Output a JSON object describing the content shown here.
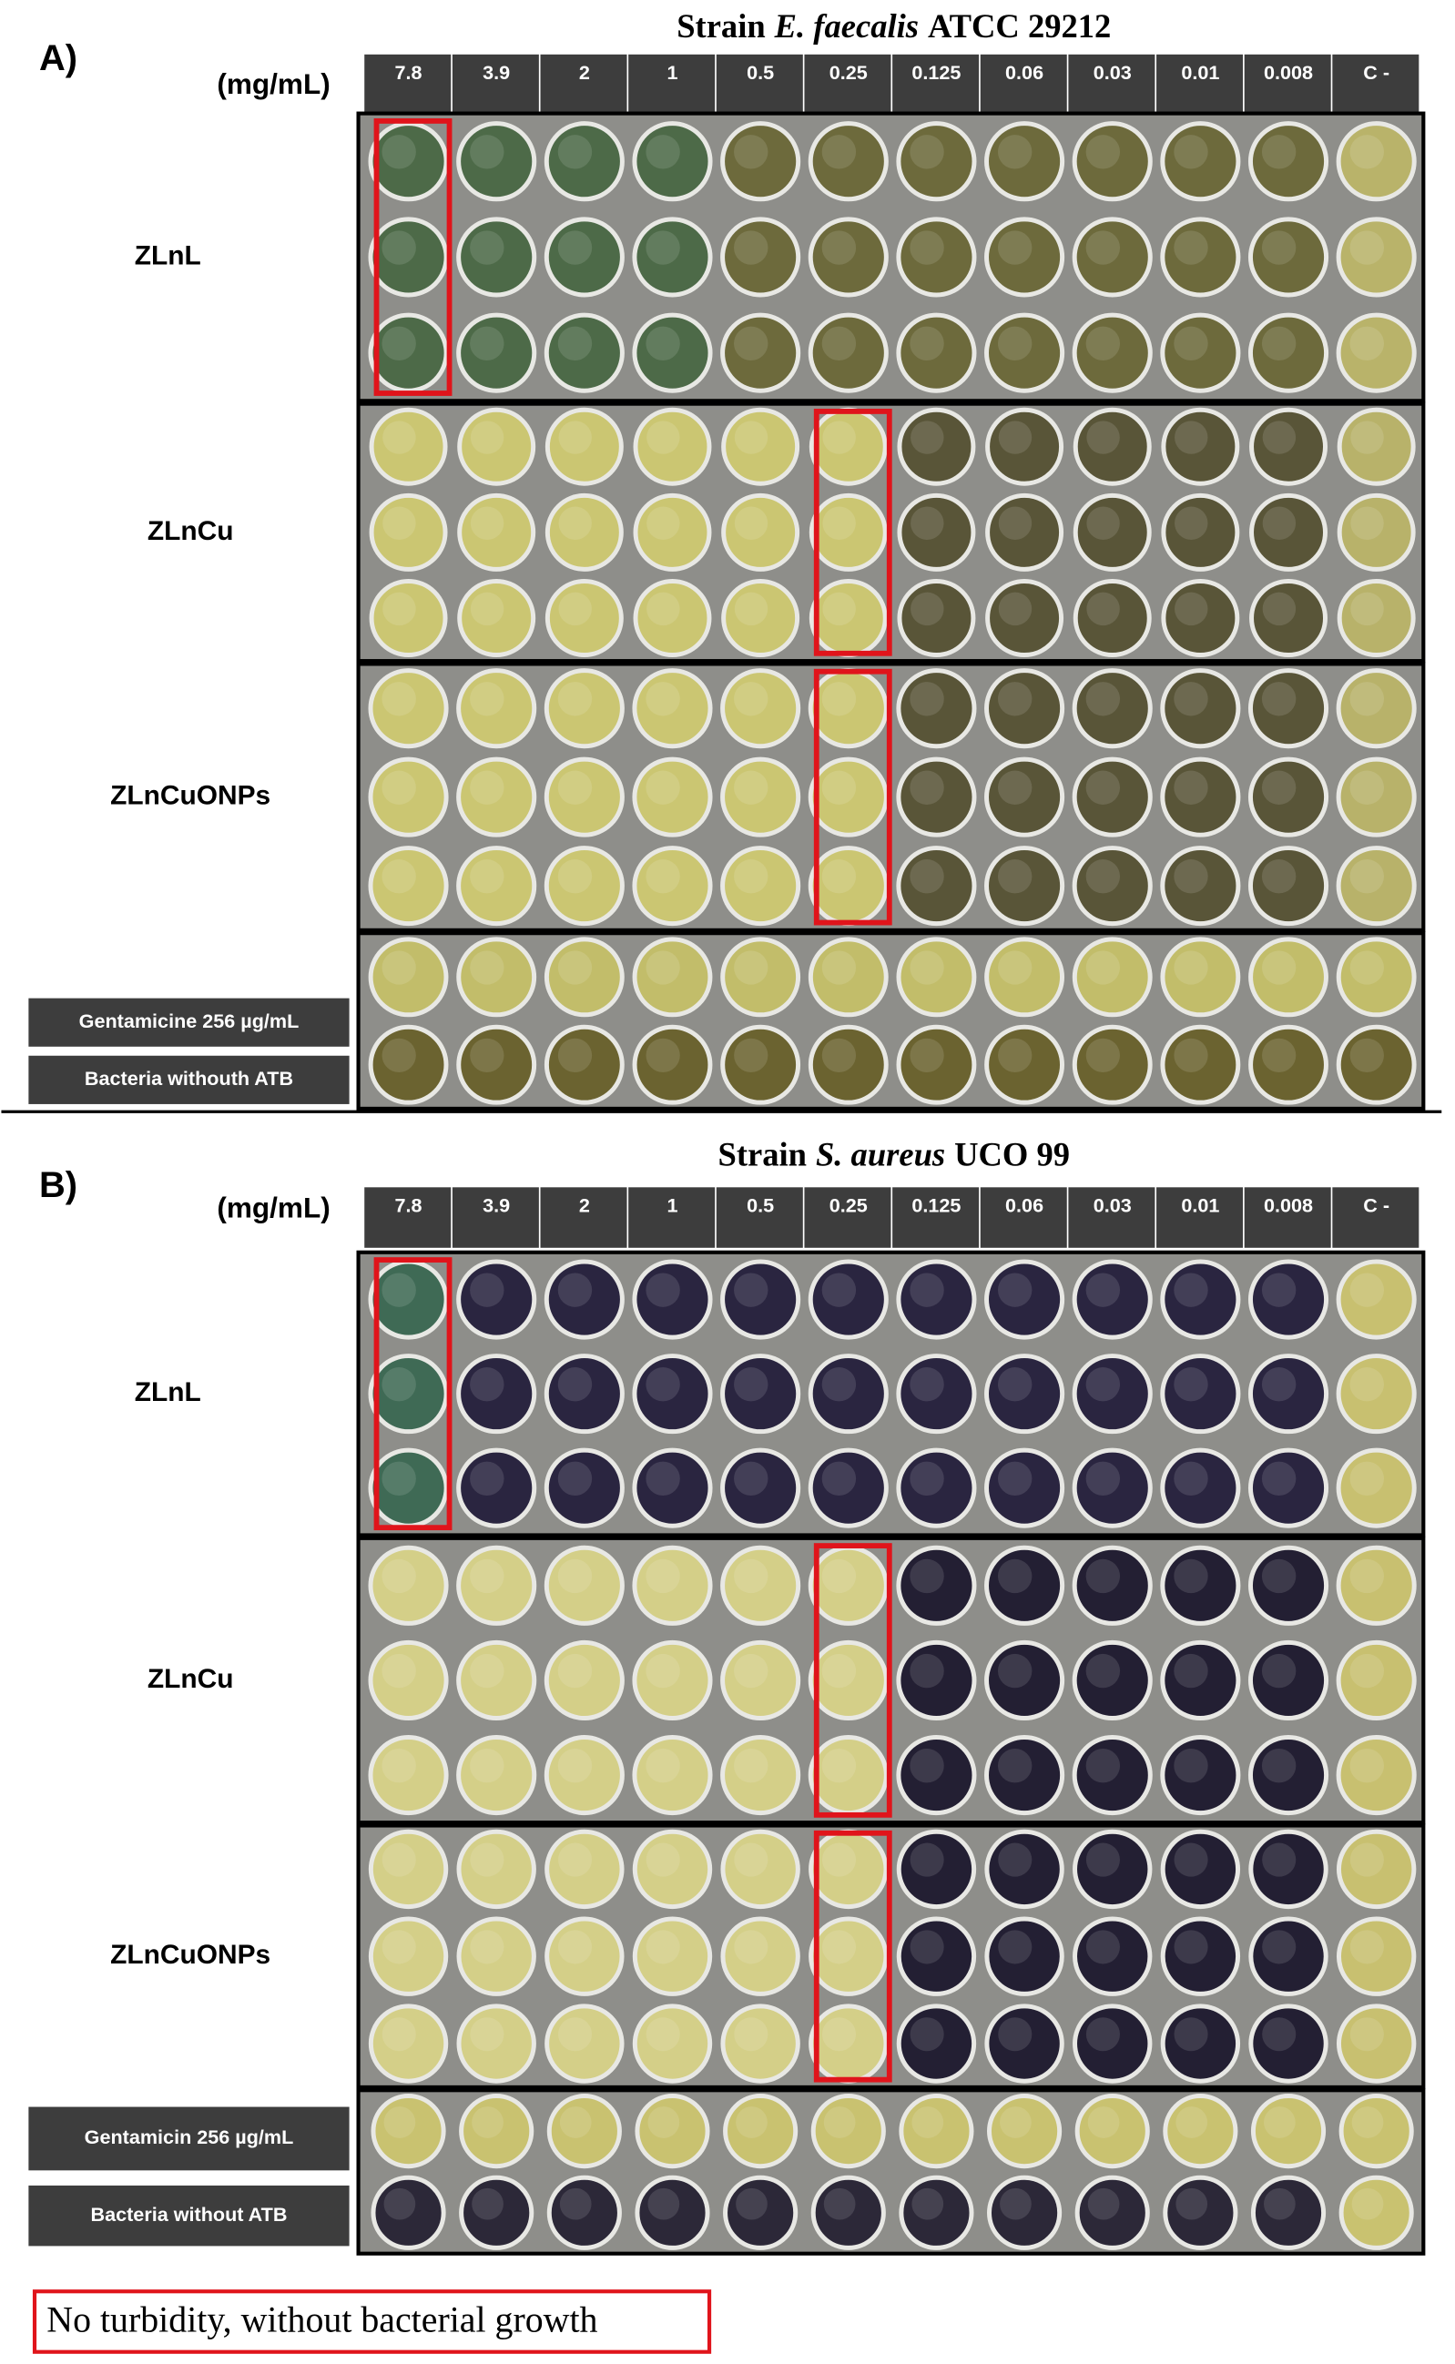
{
  "panels": [
    {
      "label": "A)",
      "title_prefix": "Strain",
      "title_species": "E. faecalis",
      "title_suffix": "ATCC 29212",
      "unit": "(mg/mL)",
      "concentrations": [
        "7.8",
        "3.9",
        "2",
        "1",
        "0.5",
        "0.25",
        "0.125",
        "0.06",
        "0.03",
        "0.01",
        "0.008",
        "C -"
      ],
      "groups": [
        "ZLnL",
        "ZLnCu",
        "ZLnCuONPs"
      ],
      "controls": [
        "Gentamicine 256 µg/mL",
        "Bacteria withouth ATB"
      ]
    },
    {
      "label": "B)",
      "title_prefix": "Strain",
      "title_species": "S. aureus",
      "title_suffix": "UCO 99",
      "unit": "(mg/mL)",
      "concentrations": [
        "7.8",
        "3.9",
        "2",
        "1",
        "0.5",
        "0.25",
        "0.125",
        "0.06",
        "0.03",
        "0.01",
        "0.008",
        "C -"
      ],
      "groups": [
        "ZLnL",
        "ZLnCu",
        "ZLnCuONPs"
      ],
      "controls": [
        "Gentamicin 256 µg/mL",
        "Bacteria without ATB"
      ]
    }
  ],
  "legend": "No turbidity, without bacterial growth"
}
